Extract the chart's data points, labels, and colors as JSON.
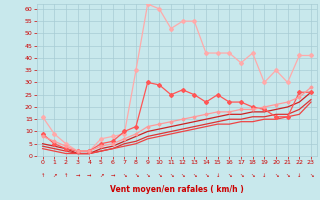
{
  "xlabel": "Vent moyen/en rafales ( km/h )",
  "xlim": [
    -0.5,
    23.5
  ],
  "ylim": [
    0,
    62
  ],
  "yticks": [
    0,
    5,
    10,
    15,
    20,
    25,
    30,
    35,
    40,
    45,
    50,
    55,
    60
  ],
  "xticks": [
    0,
    1,
    2,
    3,
    4,
    5,
    6,
    7,
    8,
    9,
    10,
    11,
    12,
    13,
    14,
    15,
    16,
    17,
    18,
    19,
    20,
    21,
    22,
    23
  ],
  "bg_color": "#c8e8ec",
  "grid_color": "#a8ccd4",
  "series": [
    {
      "x": [
        0,
        1,
        2,
        3,
        4,
        5,
        6,
        7,
        8,
        9,
        10,
        11,
        12,
        13,
        14,
        15,
        16,
        17,
        18,
        19,
        20,
        21,
        22,
        23
      ],
      "y": [
        16,
        9,
        5,
        2,
        2,
        7,
        8,
        9,
        35,
        62,
        60,
        52,
        55,
        55,
        42,
        42,
        42,
        38,
        42,
        30,
        35,
        30,
        41,
        41
      ],
      "color": "#ffaaaa",
      "marker": "D",
      "markersize": 2.0,
      "linewidth": 0.9
    },
    {
      "x": [
        0,
        1,
        2,
        3,
        4,
        5,
        6,
        7,
        8,
        9,
        10,
        11,
        12,
        13,
        14,
        15,
        16,
        17,
        18,
        19,
        20,
        21,
        22,
        23
      ],
      "y": [
        9,
        5,
        3,
        2,
        2,
        5,
        6,
        10,
        12,
        30,
        29,
        25,
        27,
        25,
        22,
        25,
        22,
        22,
        20,
        19,
        16,
        16,
        26,
        26
      ],
      "color": "#ff5555",
      "marker": "D",
      "markersize": 2.0,
      "linewidth": 0.9
    },
    {
      "x": [
        0,
        1,
        2,
        3,
        4,
        5,
        6,
        7,
        8,
        9,
        10,
        11,
        12,
        13,
        14,
        15,
        16,
        17,
        18,
        19,
        20,
        21,
        22,
        23
      ],
      "y": [
        8,
        6,
        4,
        2,
        2,
        4,
        5,
        7,
        9,
        12,
        13,
        14,
        15,
        16,
        17,
        18,
        18,
        19,
        19,
        20,
        21,
        22,
        24,
        28
      ],
      "color": "#ff9999",
      "marker": "D",
      "markersize": 1.5,
      "linewidth": 0.9
    },
    {
      "x": [
        0,
        1,
        2,
        3,
        4,
        5,
        6,
        7,
        8,
        9,
        10,
        11,
        12,
        13,
        14,
        15,
        16,
        17,
        18,
        19,
        20,
        21,
        22,
        23
      ],
      "y": [
        5,
        4,
        3,
        1,
        1,
        3,
        4,
        6,
        8,
        10,
        11,
        12,
        13,
        14,
        15,
        16,
        17,
        17,
        18,
        18,
        19,
        20,
        22,
        26
      ],
      "color": "#cc2222",
      "marker": null,
      "markersize": 0,
      "linewidth": 0.9
    },
    {
      "x": [
        0,
        1,
        2,
        3,
        4,
        5,
        6,
        7,
        8,
        9,
        10,
        11,
        12,
        13,
        14,
        15,
        16,
        17,
        18,
        19,
        20,
        21,
        22,
        23
      ],
      "y": [
        4,
        3,
        2,
        1,
        1,
        2,
        3,
        5,
        6,
        8,
        9,
        10,
        11,
        12,
        13,
        14,
        15,
        15,
        16,
        16,
        17,
        17,
        19,
        23
      ],
      "color": "#dd3333",
      "marker": null,
      "markersize": 0,
      "linewidth": 0.9
    },
    {
      "x": [
        0,
        1,
        2,
        3,
        4,
        5,
        6,
        7,
        8,
        9,
        10,
        11,
        12,
        13,
        14,
        15,
        16,
        17,
        18,
        19,
        20,
        21,
        22,
        23
      ],
      "y": [
        3,
        2,
        1,
        1,
        1,
        2,
        3,
        4,
        5,
        7,
        8,
        9,
        10,
        11,
        12,
        13,
        13,
        14,
        14,
        15,
        15,
        16,
        17,
        22
      ],
      "color": "#ee4444",
      "marker": null,
      "markersize": 0,
      "linewidth": 0.9
    }
  ],
  "arrow_symbols": [
    "↑",
    "↗",
    "↑",
    "→",
    "→",
    "↗",
    "→",
    "↘",
    "↘",
    "↘",
    "↘",
    "↘",
    "↘",
    "↘",
    "↘",
    "↓",
    "↘",
    "↘",
    "↘",
    "↓",
    "↘",
    "↘",
    "↓",
    "↘"
  ],
  "arrow_color": "#cc0000"
}
